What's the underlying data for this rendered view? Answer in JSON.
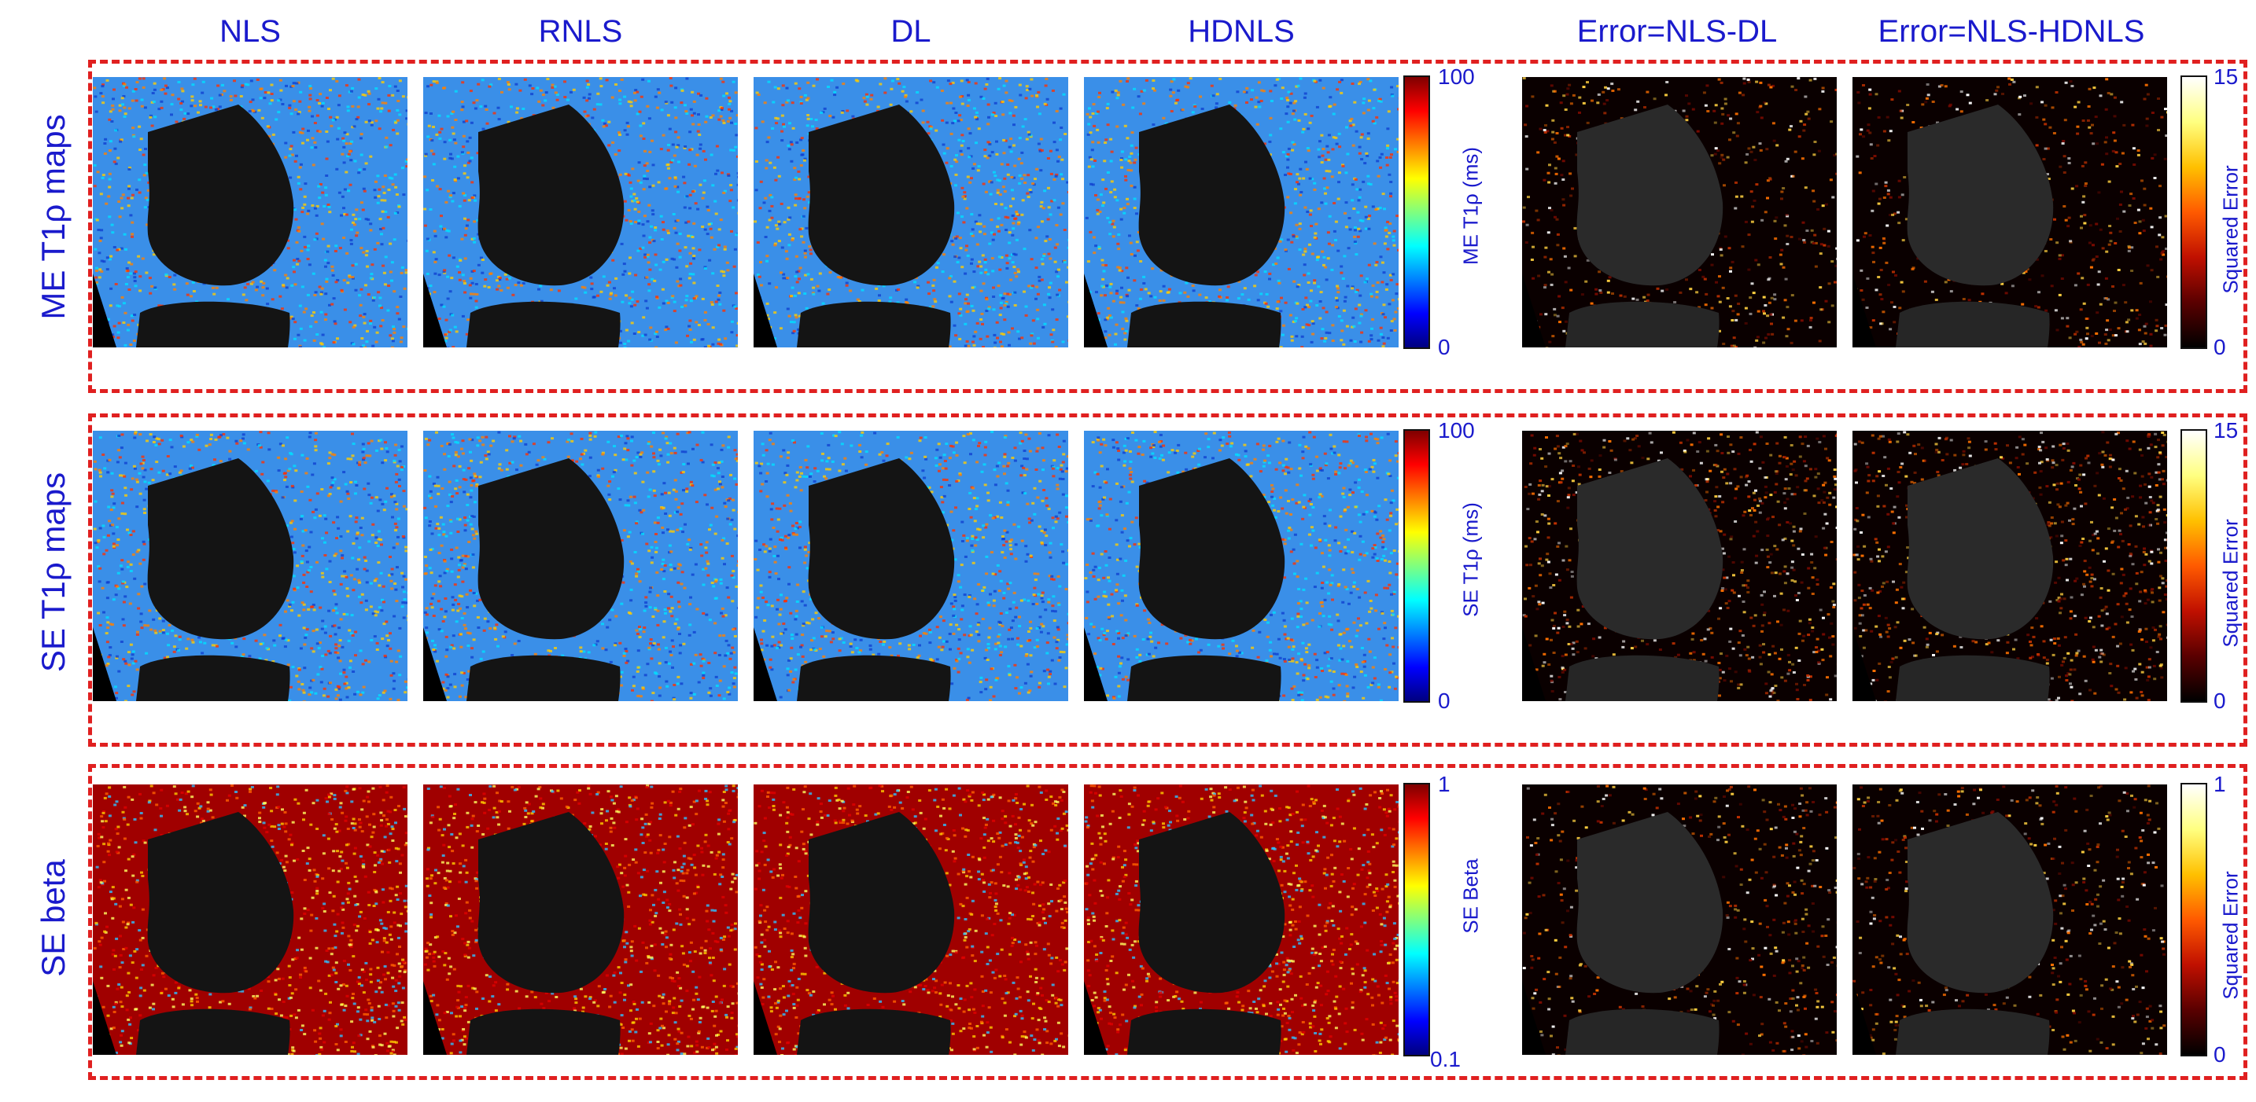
{
  "columns": [
    "NLS",
    "RNLS",
    "DL",
    "HDNLS",
    "Error=NLS-DL",
    "Error=NLS-HDNLS"
  ],
  "rows": [
    {
      "label": "ME  T1ρ maps",
      "colorbar_left": {
        "label": "ME T1ρ (ms)",
        "max": "100",
        "min": "0",
        "colormap": "jet"
      },
      "colorbar_right": {
        "label": "Squared Error",
        "max": "15",
        "min": "0",
        "colormap": "hot"
      }
    },
    {
      "label": "SE  T1ρ maps",
      "colorbar_left": {
        "label": "SE T1ρ (ms)",
        "max": "100",
        "min": "0",
        "colormap": "jet"
      },
      "colorbar_right": {
        "label": "Squared Error",
        "max": "15",
        "min": "0",
        "colormap": "hot"
      }
    },
    {
      "label": "SE beta",
      "colorbar_left": {
        "label": "SE Beta",
        "max": "1",
        "min": "0.1",
        "colormap": "jet"
      },
      "colorbar_right": {
        "label": "Squared Error",
        "max": "1",
        "min": "0",
        "colormap": "hot"
      }
    }
  ],
  "colors": {
    "text": "#1a1acc",
    "frame": "#e02020",
    "jet": [
      "#00007f",
      "#0000ff",
      "#007fff",
      "#00ffff",
      "#7fff7f",
      "#ffff00",
      "#ff7f00",
      "#ff0000",
      "#7f0000"
    ],
    "hot": [
      "#000000",
      "#5a0000",
      "#c01000",
      "#ff5a00",
      "#ffc000",
      "#ffff80",
      "#ffffff"
    ]
  }
}
